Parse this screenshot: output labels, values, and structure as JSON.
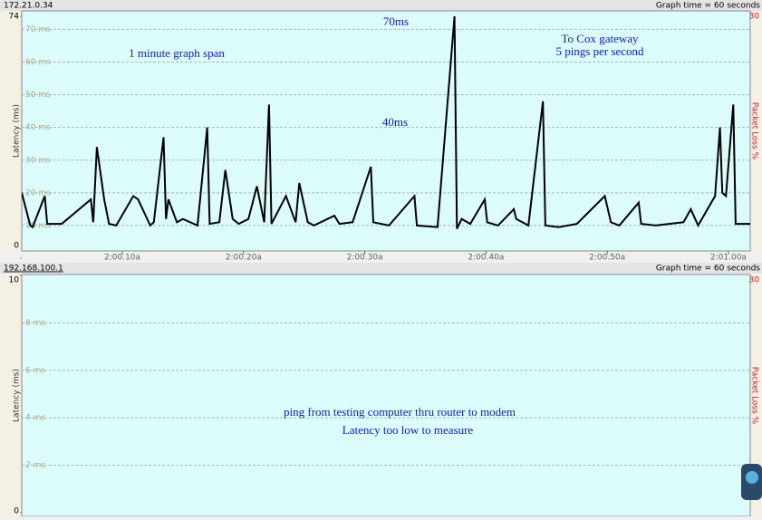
{
  "chart_data": [
    {
      "type": "line",
      "host": "172.21.0.34",
      "graph_time": "Graph time = 60 seconds",
      "ylabel": "Latency (ms)",
      "y2label": "Packet Loss %",
      "xlim": [
        1.7,
        61.8
      ],
      "xticks": [
        {
          "value": 10,
          "label": "2:00.10a"
        },
        {
          "value": 20,
          "label": "2:00.20a"
        },
        {
          "value": 30,
          "label": "2:00.30a"
        },
        {
          "value": 40,
          "label": "2:00.40a"
        },
        {
          "value": 50,
          "label": "2:00.50a"
        },
        {
          "value": 60,
          "label": "2:01.00a"
        }
      ],
      "ylim": [
        0,
        74
      ],
      "yticks": [
        0,
        {
          "value": 10,
          "label": "10 ms"
        },
        {
          "value": 20,
          "label": "20 ms"
        },
        {
          "value": 30,
          "label": "30 ms"
        },
        {
          "value": 40,
          "label": "40 ms"
        },
        {
          "value": 50,
          "label": "50 ms"
        },
        {
          "value": 60,
          "label": "60 ms"
        },
        {
          "value": 70,
          "label": "70 ms"
        },
        74
      ],
      "y2lim": [
        0,
        30
      ],
      "y2ticks": [
        30
      ],
      "grid": true,
      "annotations": [
        "70ms",
        "1 minute graph span",
        "To Cox gateway",
        "5 pings per second",
        "40ms"
      ],
      "series": [
        {
          "name": "Latency",
          "color": "#000000",
          "x": [
            1.7,
            2.4,
            2.6,
            3.6,
            3.8,
            5.0,
            7.4,
            7.6,
            7.9,
            8.5,
            8.9,
            9.5,
            10.9,
            11.3,
            12.3,
            12.6,
            13.4,
            13.6,
            13.8,
            14.5,
            15.0,
            16.2,
            17.0,
            17.2,
            18.0,
            18.5,
            19.1,
            19.6,
            20.4,
            21.1,
            21.7,
            22.1,
            22.3,
            23.5,
            24.3,
            24.6,
            25.3,
            25.8,
            27.5,
            27.9,
            29.0,
            30.5,
            30.7,
            32.0,
            34.1,
            34.3,
            36.0,
            37.4,
            37.6,
            38.0,
            38.7,
            39.9,
            40.1,
            41.0,
            42.3,
            42.5,
            43.5,
            44.7,
            44.9,
            46.0,
            47.5,
            49.8,
            50.3,
            51.0,
            52.6,
            52.8,
            54.0,
            56.3,
            56.9,
            57.5,
            58.9,
            59.3,
            59.5,
            59.8,
            60.4,
            60.6,
            61.8
          ],
          "values": [
            20,
            10,
            9.5,
            19,
            10.5,
            10.5,
            18,
            11,
            34,
            18,
            10.5,
            10,
            19,
            18,
            10,
            11,
            37,
            12,
            18,
            11,
            12,
            10,
            40,
            10.5,
            11,
            27,
            12,
            10.5,
            12,
            22,
            11,
            47,
            10.5,
            19,
            11,
            23,
            11,
            10,
            13,
            10.5,
            11,
            28,
            11,
            10,
            19,
            10,
            9.5,
            74,
            9,
            12,
            10.5,
            18,
            11,
            10,
            15,
            12,
            10,
            48,
            10,
            9.5,
            10.5,
            19,
            11,
            10,
            17,
            10.5,
            10,
            11,
            15,
            10,
            19,
            40,
            20,
            19,
            47,
            10.5,
            10.5
          ]
        }
      ]
    },
    {
      "type": "line",
      "host": "192.168.100.1",
      "graph_time": "Graph time = 60 seconds",
      "ylabel": "Latency (ms)",
      "y2label": "Packet Loss %",
      "ylim": [
        0,
        10
      ],
      "yticks": [
        0,
        {
          "value": 2,
          "label": "2 ms"
        },
        {
          "value": 4,
          "label": "4 ms"
        },
        {
          "value": 6,
          "label": "6 ms"
        },
        {
          "value": 8,
          "label": "8 ms"
        },
        10
      ],
      "y2lim": [
        0,
        30
      ],
      "y2ticks": [
        30
      ],
      "grid": true,
      "annotations": [
        "ping from testing computer thru router to modem",
        "Latency too low to measure"
      ]
    }
  ]
}
